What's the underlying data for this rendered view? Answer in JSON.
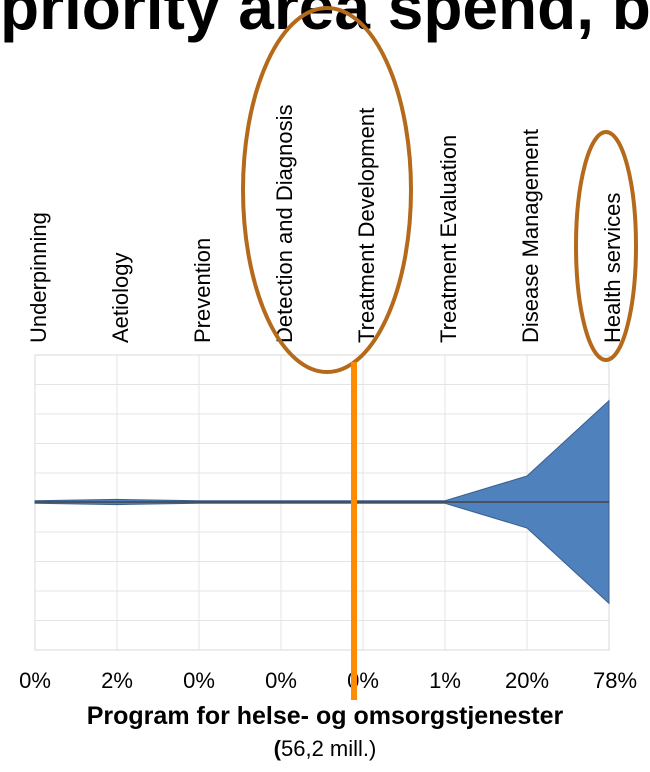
{
  "header": {
    "title": "priority area spend, by"
  },
  "chart_data": {
    "type": "area",
    "categories": [
      "Underpinning",
      "Aetiology",
      "Prevention",
      "Detection and Diagnosis",
      "Treatment Development",
      "Treatment Evaluation",
      "Disease Management",
      "Health services"
    ],
    "percent_labels": [
      "0%",
      "2%",
      "0%",
      "0%",
      "0%",
      "1%",
      "20%",
      "78%"
    ],
    "values": [
      0,
      2,
      0,
      0,
      0,
      1,
      20,
      78
    ],
    "ylim": [
      -100,
      100
    ],
    "grid": true,
    "fill_color": "#4f81bd",
    "highlighted_categories": [
      "Detection and Diagnosis",
      "Treatment Development",
      "Health services"
    ],
    "highlight_color": "#b46a1a",
    "marker_line_color": "#ff8c00"
  },
  "footer": {
    "title": "Program for helse- og omsorgstjenester",
    "subtitle_paren_open": "(",
    "subtitle_text": "56,2 mill.)"
  }
}
